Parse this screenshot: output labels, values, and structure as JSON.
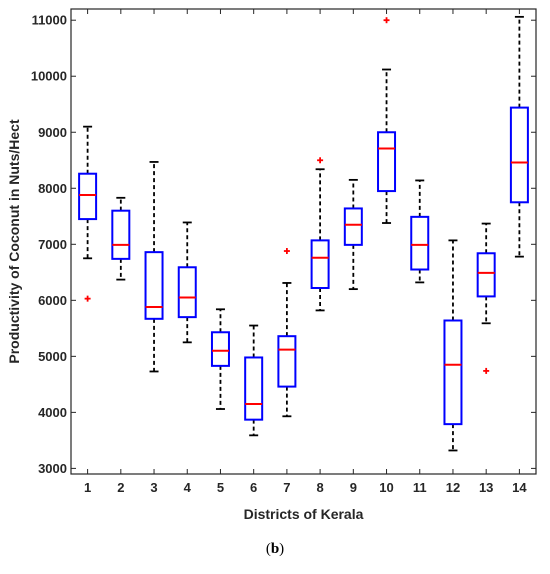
{
  "caption": {
    "open": "(",
    "letter": "b",
    "close": ")"
  },
  "chart_data": {
    "type": "boxplot",
    "xlabel": "Districts of Kerala",
    "ylabel": "Productivity of Coconut in Nuts/Hect",
    "categories": [
      "1",
      "2",
      "3",
      "4",
      "5",
      "6",
      "7",
      "8",
      "9",
      "10",
      "11",
      "12",
      "13",
      "14"
    ],
    "ylim": [
      2900,
      11200
    ],
    "yticks": [
      3000,
      4000,
      5000,
      6000,
      7000,
      8000,
      9000,
      10000,
      11000
    ],
    "grid": false,
    "colors": {
      "box": "#0000ff",
      "median": "#ff0000",
      "whisker": "#000000",
      "outlier": "#ff0000"
    },
    "boxes": [
      {
        "label": "1",
        "whisker_low": 6750,
        "q1": 7450,
        "median": 7880,
        "q3": 8260,
        "whisker_high": 9100,
        "outliers": [
          6030
        ]
      },
      {
        "label": "2",
        "whisker_low": 6370,
        "q1": 6740,
        "median": 6990,
        "q3": 7600,
        "whisker_high": 7830,
        "outliers": []
      },
      {
        "label": "3",
        "whisker_low": 4730,
        "q1": 5670,
        "median": 5880,
        "q3": 6860,
        "whisker_high": 8470,
        "outliers": []
      },
      {
        "label": "4",
        "whisker_low": 5250,
        "q1": 5700,
        "median": 6050,
        "q3": 6590,
        "whisker_high": 7390,
        "outliers": []
      },
      {
        "label": "5",
        "whisker_low": 4060,
        "q1": 4830,
        "median": 5100,
        "q3": 5430,
        "whisker_high": 5840,
        "outliers": []
      },
      {
        "label": "6",
        "whisker_low": 3590,
        "q1": 3870,
        "median": 4150,
        "q3": 4980,
        "whisker_high": 5550,
        "outliers": []
      },
      {
        "label": "7",
        "whisker_low": 3930,
        "q1": 4460,
        "median": 5120,
        "q3": 5360,
        "whisker_high": 6310,
        "outliers": [
          6880
        ]
      },
      {
        "label": "8",
        "whisker_low": 5820,
        "q1": 6220,
        "median": 6760,
        "q3": 7070,
        "whisker_high": 8340,
        "outliers": [
          8500
        ]
      },
      {
        "label": "9",
        "whisker_low": 6200,
        "q1": 6990,
        "median": 7350,
        "q3": 7640,
        "whisker_high": 8150,
        "outliers": []
      },
      {
        "label": "10",
        "whisker_low": 7380,
        "q1": 7950,
        "median": 8710,
        "q3": 9000,
        "whisker_high": 10120,
        "outliers": [
          11000
        ]
      },
      {
        "label": "11",
        "whisker_low": 6320,
        "q1": 6550,
        "median": 6990,
        "q3": 7490,
        "whisker_high": 8140,
        "outliers": []
      },
      {
        "label": "12",
        "whisker_low": 3320,
        "q1": 3790,
        "median": 4850,
        "q3": 5640,
        "whisker_high": 7070,
        "outliers": []
      },
      {
        "label": "13",
        "whisker_low": 5590,
        "q1": 6070,
        "median": 6490,
        "q3": 6840,
        "whisker_high": 7370,
        "outliers": [
          4740
        ]
      },
      {
        "label": "14",
        "whisker_low": 6780,
        "q1": 7750,
        "median": 8460,
        "q3": 9440,
        "whisker_high": 11060,
        "outliers": []
      }
    ]
  }
}
